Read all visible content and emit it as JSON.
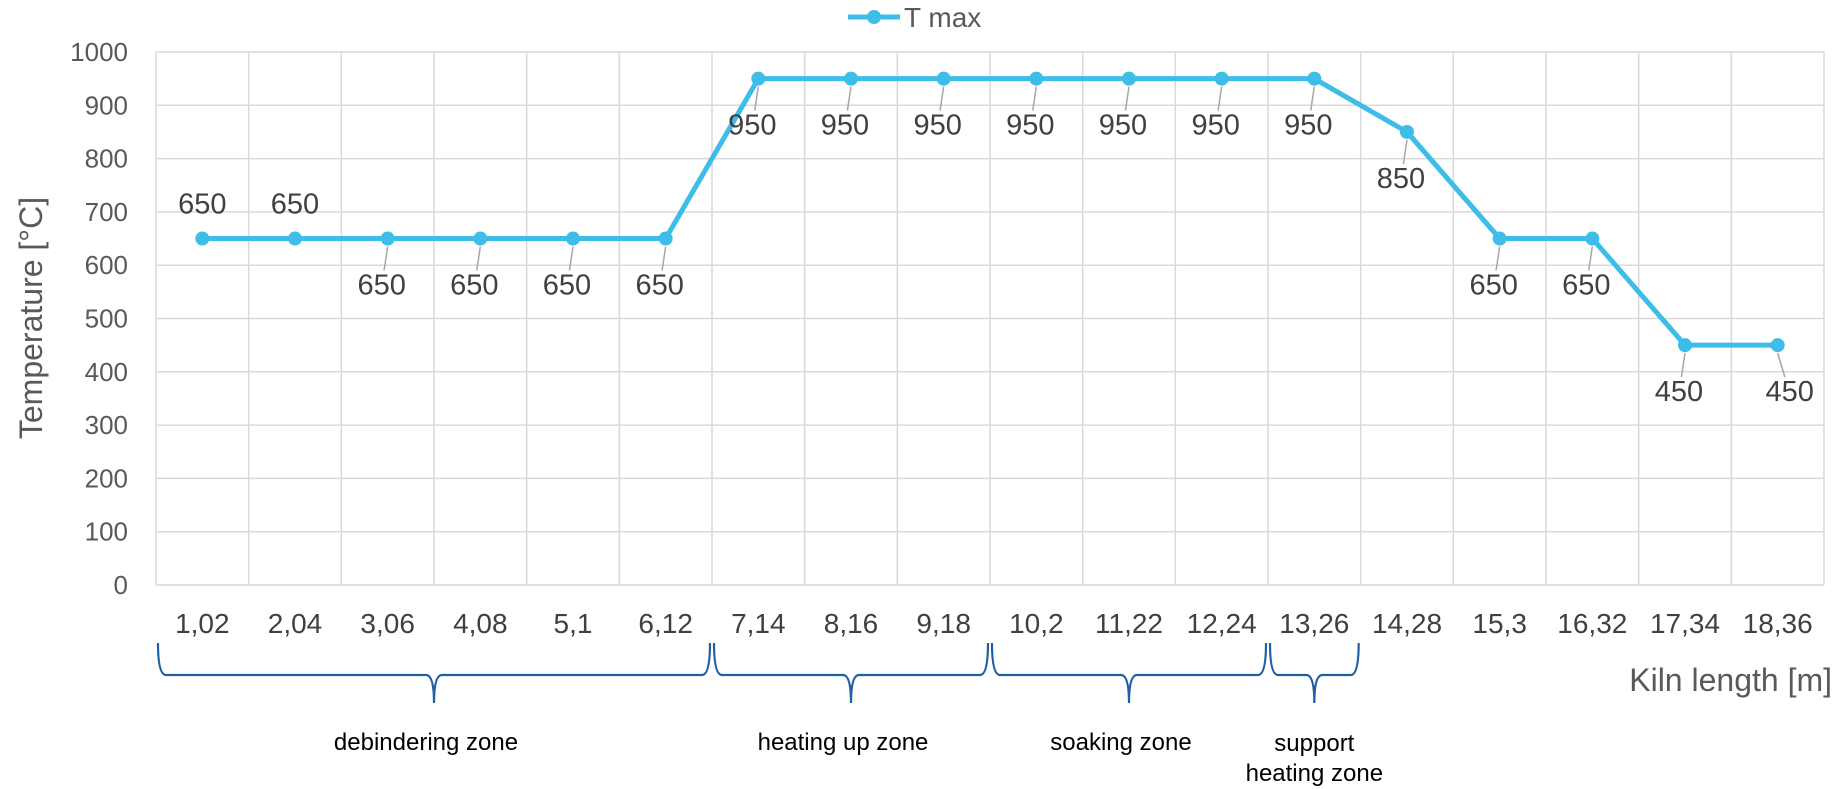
{
  "chart_data": {
    "type": "line",
    "title": "",
    "xlabel": "Kiln length [m]",
    "ylabel": "Temperature [°C]",
    "ylim": [
      0,
      1000
    ],
    "y_ticks": [
      "0",
      "100",
      "200",
      "300",
      "400",
      "500",
      "600",
      "700",
      "800",
      "900",
      "1000"
    ],
    "grid": true,
    "legend_position": "top-center",
    "categories": [
      "1,02",
      "2,04",
      "3,06",
      "4,08",
      "5,1",
      "6,12",
      "7,14",
      "8,16",
      "9,18",
      "10,2",
      "11,22",
      "12,24",
      "13,26",
      "14,28",
      "15,3",
      "16,32",
      "17,34",
      "18,36"
    ],
    "series": [
      {
        "name": "T max",
        "color": "#3dbde8",
        "values": [
          650,
          650,
          650,
          650,
          650,
          650,
          950,
          950,
          950,
          950,
          950,
          950,
          950,
          850,
          650,
          650,
          450,
          450
        ],
        "point_labels": [
          "650",
          "650",
          "650",
          "650",
          "650",
          "650",
          "950",
          "950",
          "950",
          "950",
          "950",
          "950",
          "950",
          "850",
          "650",
          "650",
          "450",
          "450"
        ]
      }
    ],
    "zones": [
      {
        "label": "debindering zone",
        "from": 0,
        "to": 6
      },
      {
        "label": "heating up zone",
        "from": 6,
        "to": 9
      },
      {
        "label": "soaking zone",
        "from": 9,
        "to": 12
      },
      {
        "label": "support heating zone",
        "label_lines": [
          "support",
          "heating zone"
        ],
        "from": 12,
        "to": 13
      }
    ],
    "zone_brace_color": "#1f5fa3"
  }
}
